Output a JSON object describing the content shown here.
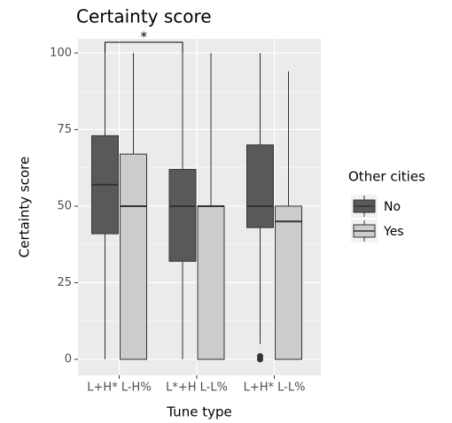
{
  "chart_data": {
    "type": "boxplot",
    "title": "Certainty score",
    "x_label": "Tune type",
    "y_label": "Certainty score",
    "categories": [
      "L+H* L-H%",
      "L*+H L-L%",
      "L+H* L-L%"
    ],
    "legend_title": "Other cities",
    "series": [
      {
        "name": "No",
        "color": "#595959",
        "values": [
          {
            "min": 0,
            "q1": 41,
            "median": 57,
            "q3": 73,
            "max": 100,
            "outliers": []
          },
          {
            "min": 0,
            "q1": 32,
            "median": 50,
            "q3": 62,
            "max": 100,
            "outliers": []
          },
          {
            "min": 5,
            "q1": 43,
            "median": 50,
            "q3": 70,
            "max": 100,
            "outliers": [
              0,
              1
            ]
          }
        ]
      },
      {
        "name": "Yes",
        "color": "#cccccc",
        "values": [
          {
            "min": 0,
            "q1": 0,
            "median": 50,
            "q3": 67,
            "max": 100,
            "outliers": []
          },
          {
            "min": 0,
            "q1": 0,
            "median": 50,
            "q3": 50,
            "max": 100,
            "outliers": []
          },
          {
            "min": 0,
            "q1": 0,
            "median": 45,
            "q3": 50,
            "max": 94,
            "outliers": []
          }
        ]
      }
    ],
    "annotation": {
      "label": "*",
      "y": 103.5,
      "series": 0,
      "categories": [
        0,
        1
      ]
    },
    "ylim": [
      -5.2,
      104.6
    ],
    "yticks": [
      0,
      25,
      50,
      75,
      100
    ],
    "grid": true
  }
}
